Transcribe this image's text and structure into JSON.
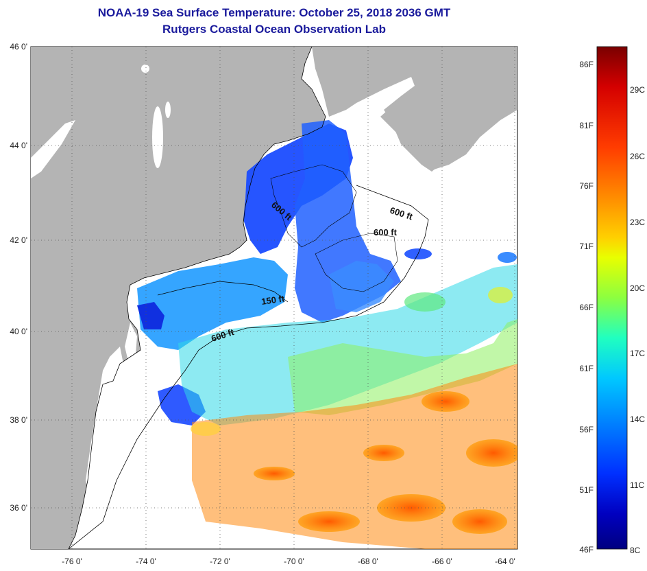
{
  "header": {
    "title": "NOAA-19 Sea Surface Temperature:  October 25, 2018 2036 GMT",
    "subtitle": "Rutgers Coastal Ocean Observation Lab"
  },
  "map": {
    "lat_labels": [
      "46 0'",
      "44 0'",
      "42 0'",
      "40 0'",
      "38 0'",
      "36 0'"
    ],
    "lon_labels": [
      "-76 0'",
      "-74 0'",
      "-72 0'",
      "-70 0'",
      "-68 0'",
      "-66 0'",
      "-64 0'"
    ],
    "contour_labels": [
      "600 ft",
      "600 ft",
      "600 ft",
      "150 ft",
      "600 ft"
    ],
    "colors": {
      "land": "#b4b4b4",
      "ocean_nodata": "#ffffff",
      "coastline": "#000000"
    }
  },
  "colorbar": {
    "fahrenheit_labels": [
      "86F",
      "81F",
      "76F",
      "71F",
      "66F",
      "61F",
      "56F",
      "51F",
      "46F"
    ],
    "celsius_labels": [
      "29C",
      "26C",
      "23C",
      "20C",
      "17C",
      "14C",
      "11C",
      "8C"
    ],
    "gradient_colors": [
      "#7a0000",
      "#d40000",
      "#ff3c00",
      "#ff8c00",
      "#ffd000",
      "#e8ff00",
      "#8cff40",
      "#20ffc0",
      "#00c8ff",
      "#0080ff",
      "#0030ff",
      "#0000c0",
      "#000080"
    ]
  }
}
